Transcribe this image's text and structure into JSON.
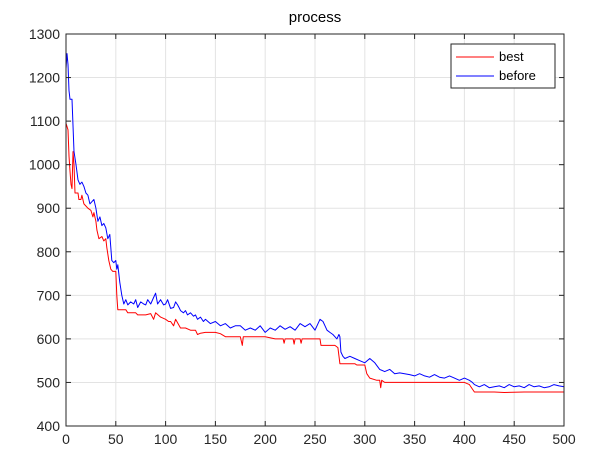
{
  "chart_data": {
    "type": "line",
    "title": "process",
    "xlabel": "",
    "ylabel": "",
    "xlim": [
      0,
      500
    ],
    "ylim": [
      400,
      1300
    ],
    "xticks": [
      0,
      50,
      100,
      150,
      200,
      250,
      300,
      350,
      400,
      450,
      500
    ],
    "yticks": [
      400,
      500,
      600,
      700,
      800,
      900,
      1000,
      1100,
      1200,
      1300
    ],
    "grid": true,
    "legend_position": "top-right",
    "series": [
      {
        "name": "best",
        "color": "#ff0000",
        "points": [
          [
            0,
            1095
          ],
          [
            2,
            1080
          ],
          [
            3,
            1020
          ],
          [
            4,
            985
          ],
          [
            5,
            955
          ],
          [
            6,
            945
          ],
          [
            7,
            1030
          ],
          [
            8,
            1000
          ],
          [
            9,
            935
          ],
          [
            12,
            935
          ],
          [
            13,
            920
          ],
          [
            15,
            920
          ],
          [
            16,
            930
          ],
          [
            18,
            910
          ],
          [
            20,
            905
          ],
          [
            22,
            900
          ],
          [
            25,
            895
          ],
          [
            27,
            880
          ],
          [
            28,
            890
          ],
          [
            30,
            870
          ],
          [
            31,
            850
          ],
          [
            33,
            830
          ],
          [
            36,
            835
          ],
          [
            38,
            825
          ],
          [
            40,
            830
          ],
          [
            41,
            810
          ],
          [
            43,
            780
          ],
          [
            45,
            760
          ],
          [
            47,
            755
          ],
          [
            50,
            755
          ],
          [
            51,
            700
          ],
          [
            52,
            667
          ],
          [
            60,
            667
          ],
          [
            62,
            660
          ],
          [
            70,
            660
          ],
          [
            72,
            655
          ],
          [
            80,
            655
          ],
          [
            85,
            658
          ],
          [
            88,
            645
          ],
          [
            90,
            660
          ],
          [
            95,
            650
          ],
          [
            100,
            645
          ],
          [
            103,
            640
          ],
          [
            105,
            640
          ],
          [
            108,
            630
          ],
          [
            110,
            645
          ],
          [
            115,
            625
          ],
          [
            120,
            625
          ],
          [
            125,
            620
          ],
          [
            130,
            620
          ],
          [
            132,
            610
          ],
          [
            135,
            613
          ],
          [
            140,
            615
          ],
          [
            150,
            615
          ],
          [
            155,
            612
          ],
          [
            160,
            605
          ],
          [
            175,
            605
          ],
          [
            177,
            585
          ],
          [
            178,
            605
          ],
          [
            190,
            605
          ],
          [
            200,
            605
          ],
          [
            210,
            600
          ],
          [
            218,
            600
          ],
          [
            219,
            590
          ],
          [
            220,
            600
          ],
          [
            228,
            600
          ],
          [
            229,
            588
          ],
          [
            230,
            600
          ],
          [
            235,
            600
          ],
          [
            236,
            590
          ],
          [
            237,
            600
          ],
          [
            245,
            600
          ],
          [
            255,
            600
          ],
          [
            256,
            585
          ],
          [
            270,
            585
          ],
          [
            273,
            580
          ],
          [
            275,
            543
          ],
          [
            290,
            543
          ],
          [
            292,
            540
          ],
          [
            300,
            540
          ],
          [
            302,
            520
          ],
          [
            305,
            510
          ],
          [
            312,
            505
          ],
          [
            315,
            505
          ],
          [
            316,
            488
          ],
          [
            317,
            505
          ],
          [
            320,
            500
          ],
          [
            340,
            500
          ],
          [
            360,
            500
          ],
          [
            380,
            500
          ],
          [
            400,
            500
          ],
          [
            405,
            495
          ],
          [
            410,
            478
          ],
          [
            430,
            478
          ],
          [
            440,
            477
          ],
          [
            460,
            478
          ],
          [
            480,
            478
          ],
          [
            500,
            478
          ]
        ]
      },
      {
        "name": "before",
        "color": "#0000ff",
        "points": [
          [
            0,
            1220
          ],
          [
            1,
            1255
          ],
          [
            2,
            1230
          ],
          [
            3,
            1170
          ],
          [
            4,
            1150
          ],
          [
            6,
            1150
          ],
          [
            7,
            1090
          ],
          [
            8,
            1030
          ],
          [
            10,
            1000
          ],
          [
            12,
            965
          ],
          [
            14,
            955
          ],
          [
            16,
            960
          ],
          [
            18,
            950
          ],
          [
            20,
            935
          ],
          [
            22,
            930
          ],
          [
            24,
            910
          ],
          [
            26,
            915
          ],
          [
            28,
            920
          ],
          [
            30,
            900
          ],
          [
            32,
            870
          ],
          [
            34,
            880
          ],
          [
            36,
            860
          ],
          [
            38,
            865
          ],
          [
            40,
            855
          ],
          [
            42,
            830
          ],
          [
            44,
            840
          ],
          [
            46,
            780
          ],
          [
            48,
            775
          ],
          [
            50,
            780
          ],
          [
            51,
            760
          ],
          [
            52,
            770
          ],
          [
            54,
            730
          ],
          [
            56,
            700
          ],
          [
            58,
            680
          ],
          [
            60,
            690
          ],
          [
            62,
            678
          ],
          [
            65,
            685
          ],
          [
            68,
            680
          ],
          [
            70,
            690
          ],
          [
            72,
            672
          ],
          [
            75,
            685
          ],
          [
            78,
            680
          ],
          [
            80,
            678
          ],
          [
            82,
            690
          ],
          [
            85,
            680
          ],
          [
            88,
            695
          ],
          [
            90,
            705
          ],
          [
            92,
            680
          ],
          [
            95,
            690
          ],
          [
            98,
            678
          ],
          [
            100,
            680
          ],
          [
            102,
            690
          ],
          [
            105,
            670
          ],
          [
            108,
            672
          ],
          [
            110,
            685
          ],
          [
            112,
            678
          ],
          [
            114,
            670
          ],
          [
            115,
            665
          ],
          [
            118,
            660
          ],
          [
            120,
            665
          ],
          [
            122,
            655
          ],
          [
            125,
            660
          ],
          [
            128,
            652
          ],
          [
            130,
            655
          ],
          [
            132,
            645
          ],
          [
            135,
            650
          ],
          [
            138,
            640
          ],
          [
            140,
            645
          ],
          [
            145,
            635
          ],
          [
            150,
            640
          ],
          [
            155,
            630
          ],
          [
            160,
            635
          ],
          [
            165,
            625
          ],
          [
            170,
            630
          ],
          [
            175,
            630
          ],
          [
            180,
            620
          ],
          [
            185,
            625
          ],
          [
            190,
            620
          ],
          [
            195,
            630
          ],
          [
            200,
            615
          ],
          [
            205,
            625
          ],
          [
            210,
            620
          ],
          [
            215,
            630
          ],
          [
            220,
            622
          ],
          [
            225,
            628
          ],
          [
            230,
            620
          ],
          [
            235,
            635
          ],
          [
            240,
            628
          ],
          [
            245,
            635
          ],
          [
            250,
            620
          ],
          [
            255,
            645
          ],
          [
            258,
            640
          ],
          [
            260,
            630
          ],
          [
            262,
            620
          ],
          [
            265,
            615
          ],
          [
            268,
            610
          ],
          [
            270,
            605
          ],
          [
            272,
            600
          ],
          [
            274,
            610
          ],
          [
            275,
            605
          ],
          [
            276,
            570
          ],
          [
            278,
            560
          ],
          [
            280,
            555
          ],
          [
            285,
            560
          ],
          [
            290,
            555
          ],
          [
            295,
            550
          ],
          [
            300,
            545
          ],
          [
            305,
            555
          ],
          [
            310,
            545
          ],
          [
            315,
            530
          ],
          [
            320,
            525
          ],
          [
            325,
            530
          ],
          [
            330,
            520
          ],
          [
            335,
            522
          ],
          [
            340,
            520
          ],
          [
            345,
            518
          ],
          [
            350,
            515
          ],
          [
            355,
            520
          ],
          [
            360,
            515
          ],
          [
            365,
            512
          ],
          [
            370,
            518
          ],
          [
            375,
            512
          ],
          [
            380,
            510
          ],
          [
            385,
            515
          ],
          [
            390,
            510
          ],
          [
            395,
            505
          ],
          [
            400,
            510
          ],
          [
            405,
            505
          ],
          [
            408,
            500
          ],
          [
            410,
            495
          ],
          [
            415,
            490
          ],
          [
            420,
            495
          ],
          [
            425,
            488
          ],
          [
            430,
            490
          ],
          [
            435,
            492
          ],
          [
            440,
            488
          ],
          [
            445,
            495
          ],
          [
            450,
            490
          ],
          [
            455,
            492
          ],
          [
            460,
            488
          ],
          [
            465,
            495
          ],
          [
            470,
            490
          ],
          [
            475,
            492
          ],
          [
            480,
            488
          ],
          [
            485,
            490
          ],
          [
            490,
            495
          ],
          [
            495,
            492
          ],
          [
            500,
            490
          ]
        ]
      }
    ]
  }
}
